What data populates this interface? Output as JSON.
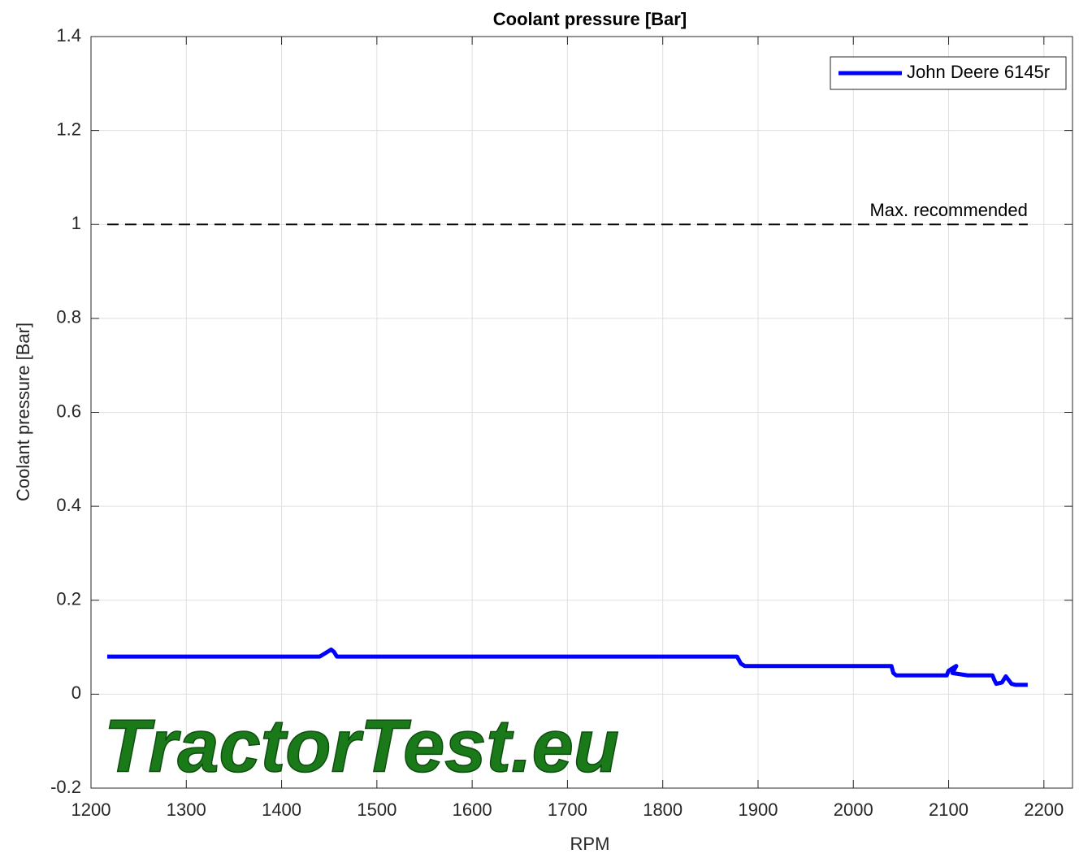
{
  "chart_data": {
    "type": "line",
    "title": "Coolant pressure [Bar]",
    "xlabel": "RPM",
    "ylabel": "Coolant pressure [Bar]",
    "watermark": "TractorTest.eu",
    "xlim": [
      1200,
      2230
    ],
    "xticks": [
      1200,
      1300,
      1400,
      1500,
      1600,
      1700,
      1800,
      1900,
      2000,
      2100,
      2200
    ],
    "ylim": [
      -0.2,
      1.4
    ],
    "yticks": [
      -0.2,
      0,
      0.2,
      0.4,
      0.6,
      0.8,
      1,
      1.2,
      1.4
    ],
    "grid": true,
    "legend": "upper right",
    "series": [
      {
        "name": "John Deere 6145r",
        "color": "#0000ff",
        "x": [
          1217,
          1300,
          1400,
          1440,
          1448,
          1452,
          1455,
          1458,
          1600,
          1800,
          1878,
          1882,
          1886,
          1950,
          2040,
          2042,
          2045,
          2080,
          2098,
          2100,
          2108,
          2104,
          2120,
          2146,
          2148,
          2150,
          2156,
          2160,
          2163,
          2166,
          2170,
          2183
        ],
        "values": [
          0.08,
          0.08,
          0.08,
          0.08,
          0.09,
          0.095,
          0.09,
          0.08,
          0.08,
          0.08,
          0.08,
          0.065,
          0.06,
          0.06,
          0.06,
          0.045,
          0.04,
          0.04,
          0.04,
          0.05,
          0.06,
          0.045,
          0.04,
          0.04,
          0.03,
          0.022,
          0.025,
          0.038,
          0.03,
          0.022,
          0.02,
          0.02
        ]
      }
    ],
    "reference": {
      "label": "Max. recommended",
      "value": 1,
      "x": [
        1217,
        2183
      ],
      "color": "#000000"
    }
  }
}
